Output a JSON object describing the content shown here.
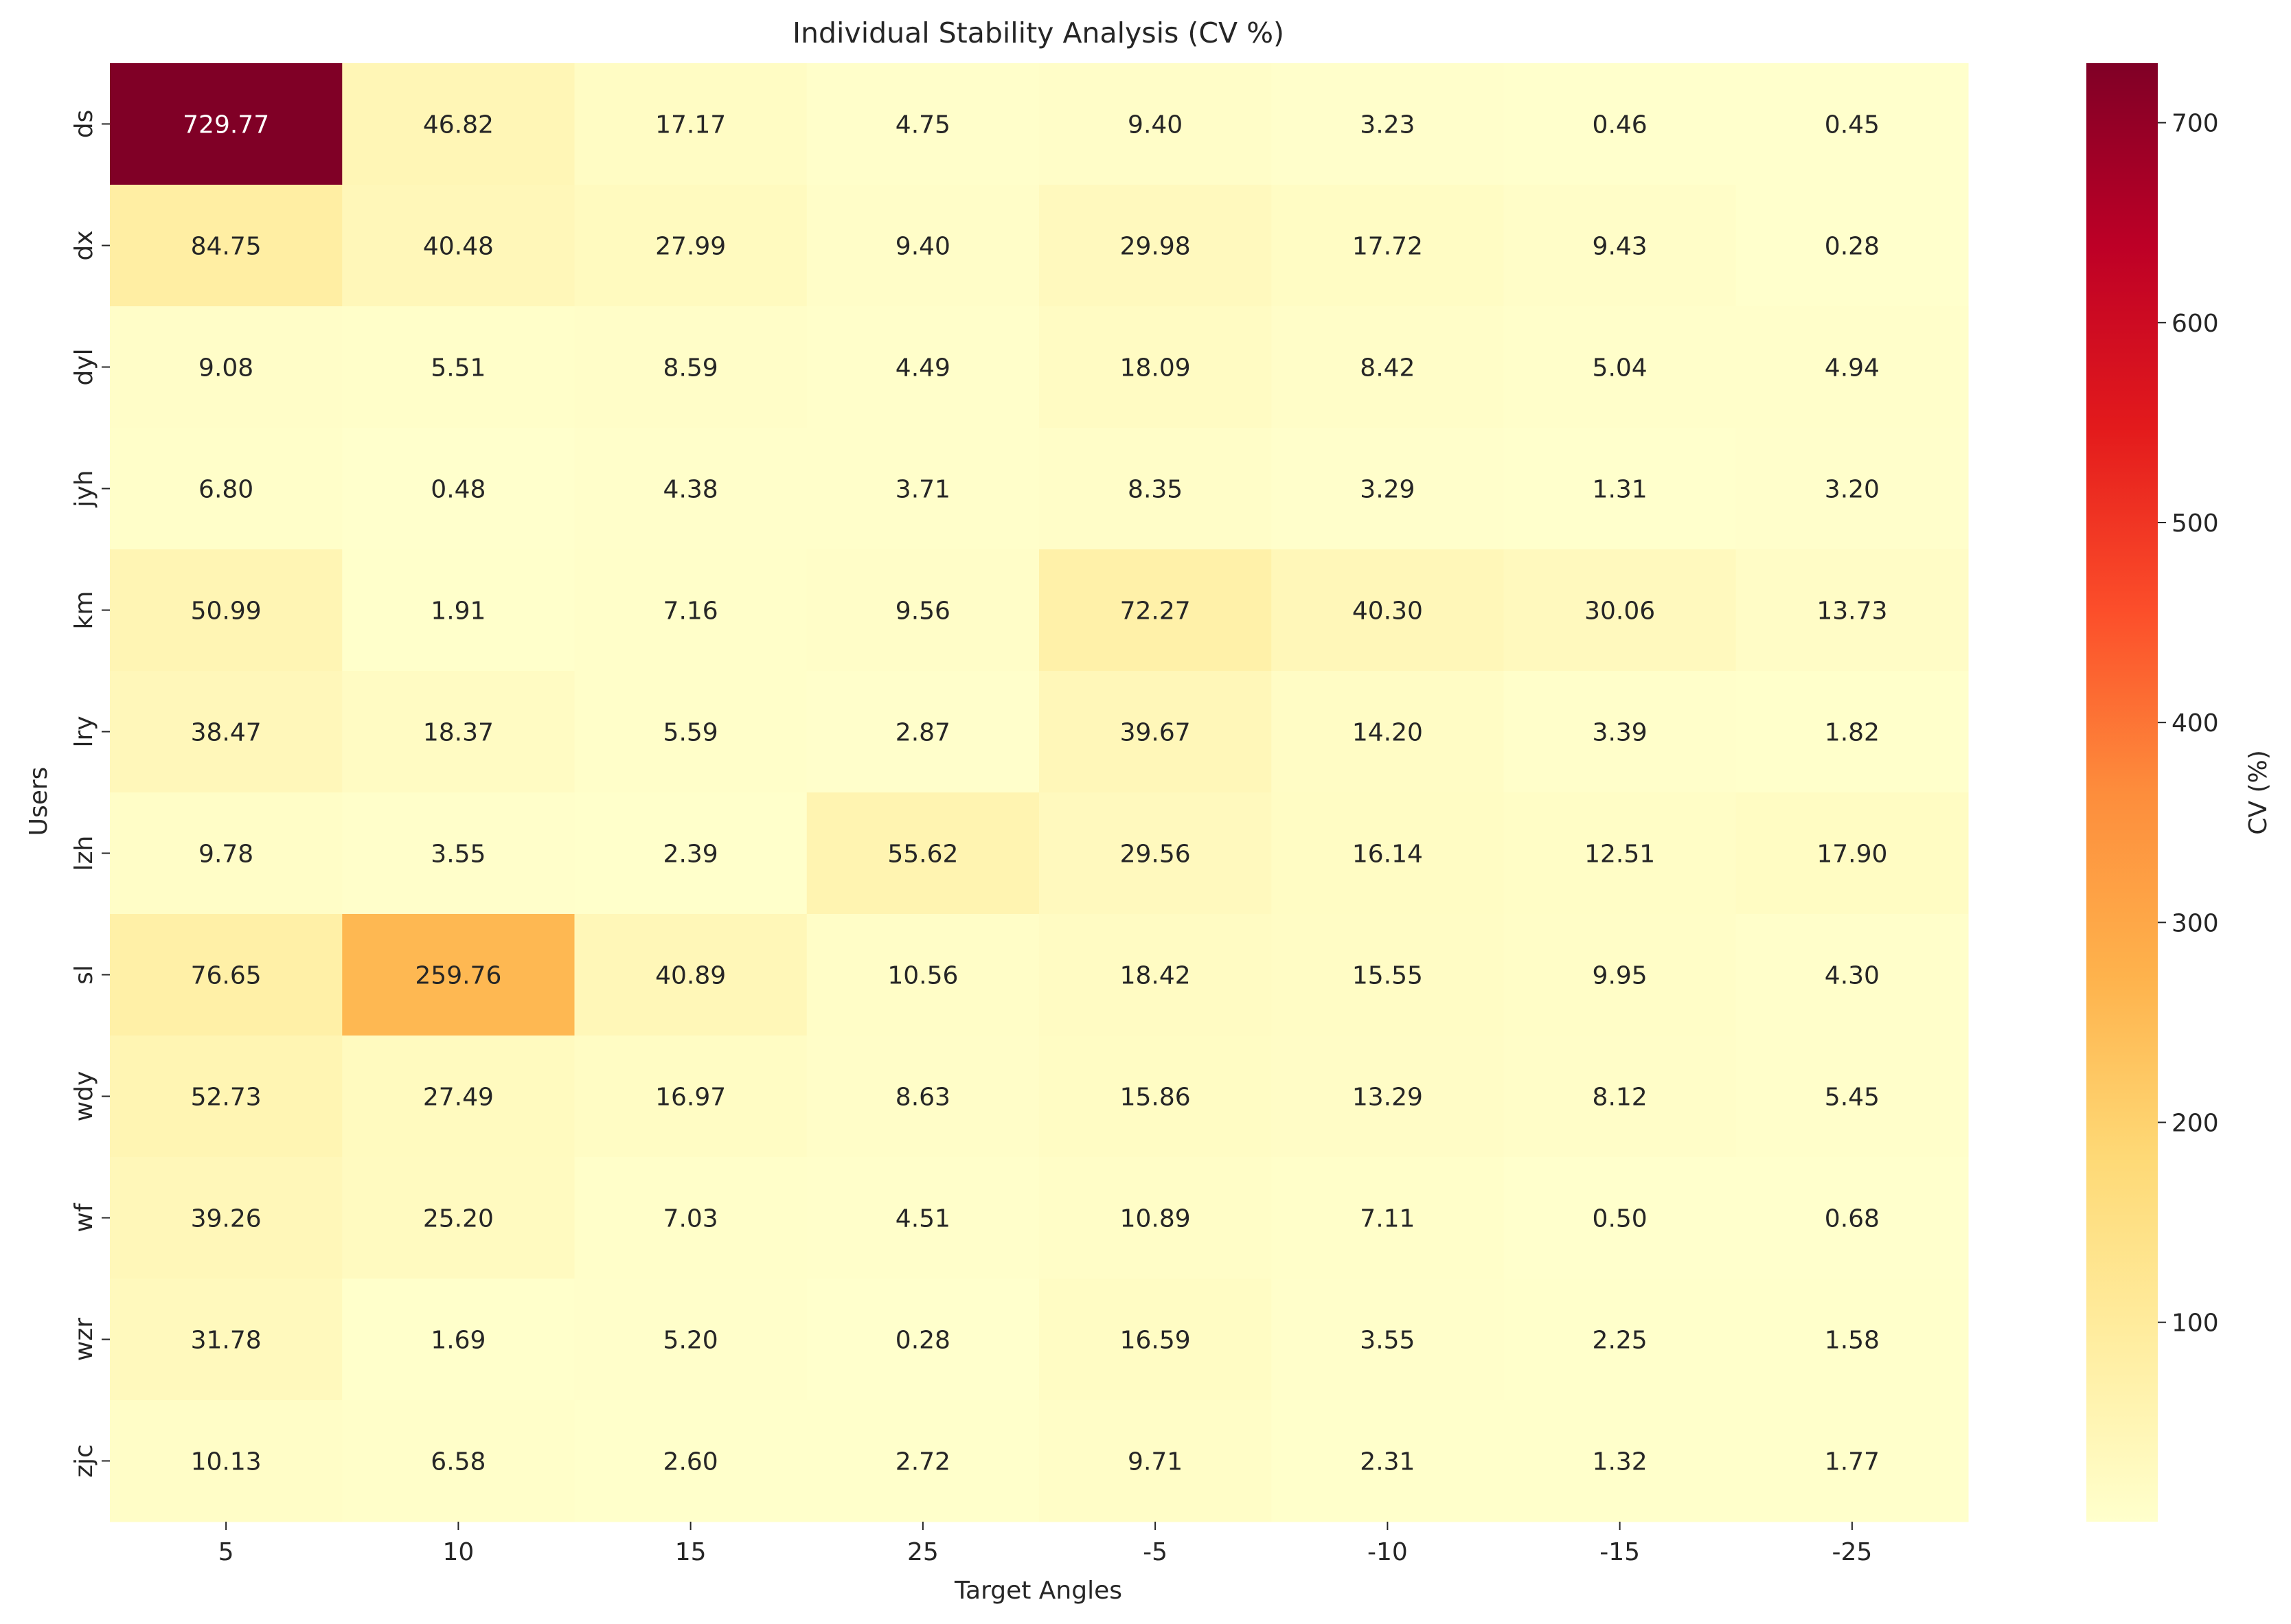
{
  "chart_data": {
    "type": "heatmap",
    "title": "Individual Stability Analysis (CV %)",
    "xlabel": "Target Angles",
    "ylabel": "Users",
    "colorbar_label": "CV (%)",
    "colormap": "YlOrRd",
    "color_range": [
      0.28,
      729.77
    ],
    "colorbar_ticks": [
      100,
      200,
      300,
      400,
      500,
      600,
      700
    ],
    "x_categories": [
      "5",
      "10",
      "15",
      "25",
      "-5",
      "-10",
      "-15",
      "-25"
    ],
    "y_categories": [
      "ds",
      "dx",
      "dyl",
      "jyh",
      "km",
      "lry",
      "lzh",
      "sl",
      "wdy",
      "wf",
      "wzr",
      "zjc"
    ],
    "values": [
      [
        729.77,
        46.82,
        17.17,
        4.75,
        9.4,
        3.23,
        0.46,
        0.45
      ],
      [
        84.75,
        40.48,
        27.99,
        9.4,
        29.98,
        17.72,
        9.43,
        0.28
      ],
      [
        9.08,
        5.51,
        8.59,
        4.49,
        18.09,
        8.42,
        5.04,
        4.94
      ],
      [
        6.8,
        0.48,
        4.38,
        3.71,
        8.35,
        3.29,
        1.31,
        3.2
      ],
      [
        50.99,
        1.91,
        7.16,
        9.56,
        72.27,
        40.3,
        30.06,
        13.73
      ],
      [
        38.47,
        18.37,
        5.59,
        2.87,
        39.67,
        14.2,
        3.39,
        1.82
      ],
      [
        9.78,
        3.55,
        2.39,
        55.62,
        29.56,
        16.14,
        12.51,
        17.9
      ],
      [
        76.65,
        259.76,
        40.89,
        10.56,
        18.42,
        15.55,
        9.95,
        4.3
      ],
      [
        52.73,
        27.49,
        16.97,
        8.63,
        15.86,
        13.29,
        8.12,
        5.45
      ],
      [
        39.26,
        25.2,
        7.03,
        4.51,
        10.89,
        7.11,
        0.5,
        0.68
      ],
      [
        31.78,
        1.69,
        5.2,
        0.28,
        16.59,
        3.55,
        2.25,
        1.58
      ],
      [
        10.13,
        6.58,
        2.6,
        2.72,
        9.71,
        2.31,
        1.32,
        1.77
      ]
    ],
    "value_labels": [
      [
        "729.77",
        "46.82",
        "17.17",
        "4.75",
        "9.40",
        "3.23",
        "0.46",
        "0.45"
      ],
      [
        "84.75",
        "40.48",
        "27.99",
        "9.40",
        "29.98",
        "17.72",
        "9.43",
        "0.28"
      ],
      [
        "9.08",
        "5.51",
        "8.59",
        "4.49",
        "18.09",
        "8.42",
        "5.04",
        "4.94"
      ],
      [
        "6.80",
        "0.48",
        "4.38",
        "3.71",
        "8.35",
        "3.29",
        "1.31",
        "3.20"
      ],
      [
        "50.99",
        "1.91",
        "7.16",
        "9.56",
        "72.27",
        "40.30",
        "30.06",
        "13.73"
      ],
      [
        "38.47",
        "18.37",
        "5.59",
        "2.87",
        "39.67",
        "14.20",
        "3.39",
        "1.82"
      ],
      [
        "9.78",
        "3.55",
        "2.39",
        "55.62",
        "29.56",
        "16.14",
        "12.51",
        "17.90"
      ],
      [
        "76.65",
        "259.76",
        "40.89",
        "10.56",
        "18.42",
        "15.55",
        "9.95",
        "4.30"
      ],
      [
        "52.73",
        "27.49",
        "16.97",
        "8.63",
        "15.86",
        "13.29",
        "8.12",
        "5.45"
      ],
      [
        "39.26",
        "25.20",
        "7.03",
        "4.51",
        "10.89",
        "7.11",
        "0.50",
        "0.68"
      ],
      [
        "31.78",
        "1.69",
        "5.20",
        "0.28",
        "16.59",
        "3.55",
        "2.25",
        "1.58"
      ],
      [
        "10.13",
        "6.58",
        "2.60",
        "2.72",
        "9.71",
        "2.31",
        "1.32",
        "1.77"
      ]
    ]
  }
}
